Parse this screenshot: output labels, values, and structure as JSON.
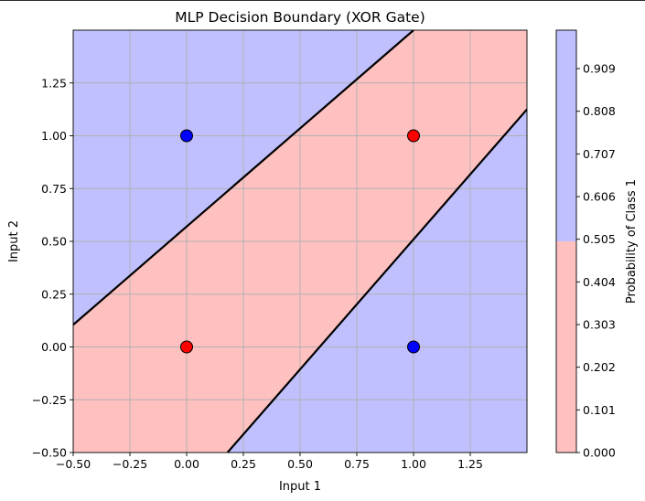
{
  "chart_data": {
    "type": "contour",
    "title": "MLP Decision Boundary (XOR Gate)",
    "xlabel": "Input 1",
    "ylabel": "Input 2",
    "xlim": [
      -0.5,
      1.5
    ],
    "ylim": [
      -0.5,
      1.5
    ],
    "xticks": [
      "−0.50",
      "−0.25",
      "0.00",
      "0.25",
      "0.50",
      "0.75",
      "1.00",
      "1.25"
    ],
    "yticks": [
      "−0.50",
      "−0.25",
      "0.00",
      "0.25",
      "0.50",
      "0.75",
      "1.00",
      "1.25"
    ],
    "xtick_values": [
      -0.5,
      -0.25,
      0,
      0.25,
      0.5,
      0.75,
      1.0,
      1.25
    ],
    "ytick_values": [
      -0.5,
      -0.25,
      0,
      0.25,
      0.5,
      0.75,
      1.0,
      1.25
    ],
    "grid": true,
    "points": [
      {
        "x": 0,
        "y": 0,
        "class": 0,
        "color": "#ff0000"
      },
      {
        "x": 0,
        "y": 1,
        "class": 1,
        "color": "#0000ff"
      },
      {
        "x": 1,
        "y": 0,
        "class": 1,
        "color": "#0000ff"
      },
      {
        "x": 1,
        "y": 1,
        "class": 0,
        "color": "#ff0000"
      }
    ],
    "decision_boundaries": [
      {
        "x": [
          -0.5,
          1.0
        ],
        "y": [
          0.105,
          1.5
        ]
      },
      {
        "x": [
          0.18,
          1.5
        ],
        "y": [
          -0.5,
          1.125
        ]
      }
    ],
    "region_colors": {
      "class0": "#ffc0c0",
      "class1": "#c0c0ff"
    },
    "colorbar": {
      "label": "Probability of Class 1",
      "ticks": [
        "0.000",
        "0.101",
        "0.202",
        "0.303",
        "0.404",
        "0.505",
        "0.606",
        "0.707",
        "0.808",
        "0.909"
      ],
      "tick_values": [
        0.0,
        0.101,
        0.202,
        0.303,
        0.404,
        0.505,
        0.606,
        0.707,
        0.808,
        0.909
      ],
      "range": [
        0.0,
        1.0
      ],
      "split": 0.5
    }
  }
}
